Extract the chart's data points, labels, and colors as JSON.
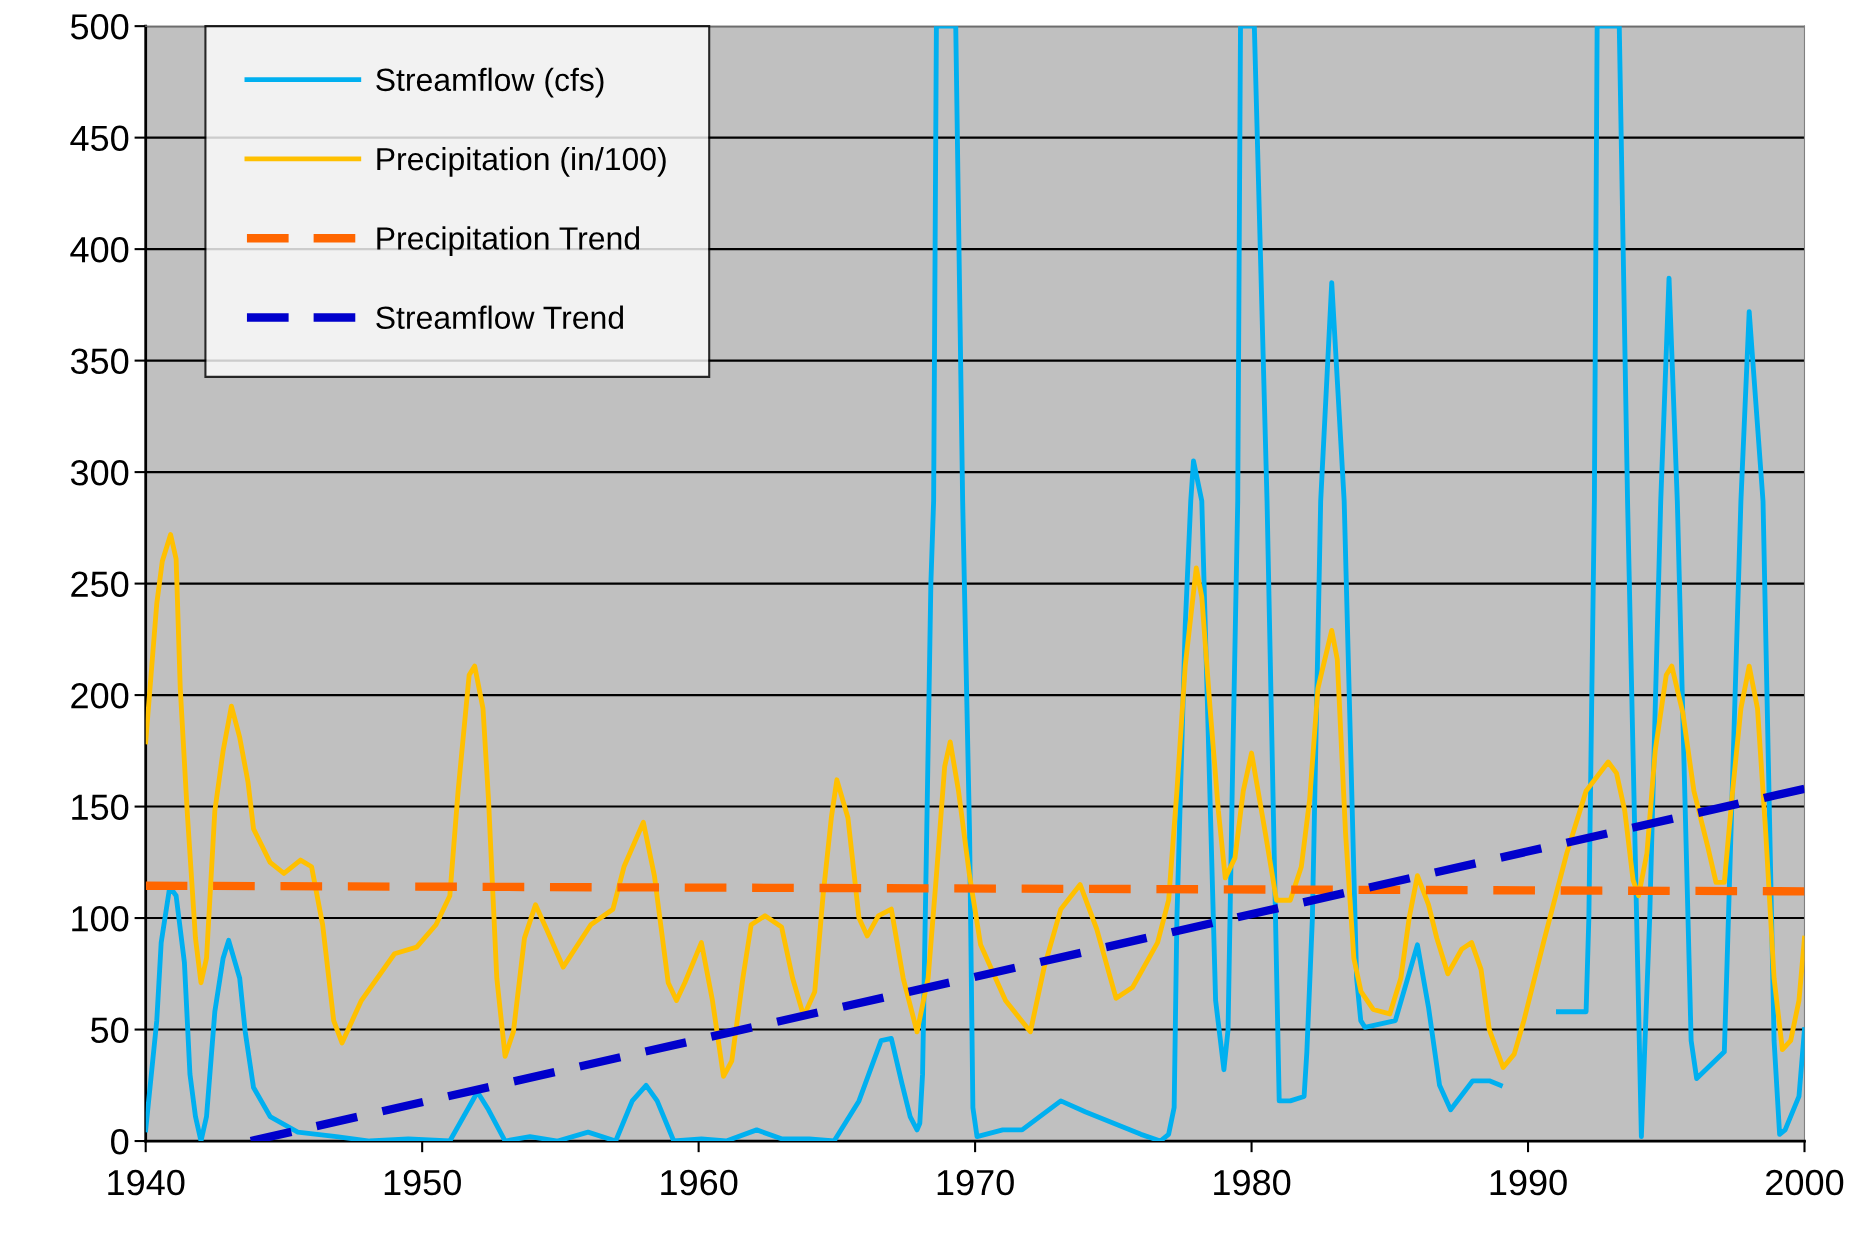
{
  "chart_data": {
    "type": "line",
    "xlim": [
      1940,
      2000
    ],
    "xticks": [
      1940,
      1950,
      1960,
      1970,
      1980,
      1990,
      2000
    ],
    "ylim": [
      0,
      500
    ],
    "yticks": [
      0,
      50,
      100,
      150,
      200,
      250,
      300,
      350,
      400,
      450,
      500
    ],
    "grid": "y",
    "legend": "top left",
    "series": [
      {
        "name": "Streamflow (cfs)",
        "color": "#00b0f0",
        "line_style": "solid",
        "x": [
          1940.0,
          1940.4,
          1940.56,
          1940.87,
          1941.1,
          1941.4,
          1941.6,
          1941.8,
          1942.0,
          1942.2,
          1942.5,
          1942.8,
          1943.0,
          1943.4,
          1943.6,
          1943.9,
          1944.5,
          1945.5,
          1946.9,
          1948.1,
          1949.5,
          1951.0,
          1952.0,
          1952.4,
          1953.0,
          1953.9,
          1954.9,
          1956.0,
          1957.0,
          1957.6,
          1958.1,
          1958.5,
          1959.1,
          1960.1,
          1961.0,
          1962.1,
          1963.0,
          1964.0,
          1964.9,
          1965.8,
          1966.6,
          1966.97,
          1967.35,
          1967.65,
          1967.9,
          1968.0,
          1968.1,
          1968.25,
          1968.4,
          1968.5,
          1968.6,
          1969.3,
          1969.55,
          1969.8,
          1969.92,
          1970.07,
          1971.0,
          1971.7,
          1973.1,
          1974.0,
          1976.0,
          1976.7,
          1977.0,
          1977.2,
          1977.3,
          1977.6,
          1977.8,
          1977.9,
          1978.2,
          1978.7,
          1979.0,
          1979.15,
          1979.3,
          1979.5,
          1979.6,
          1980.1,
          1980.56,
          1981.0,
          1981.4,
          1981.9,
          1982.0,
          1982.2,
          1982.5,
          1982.9,
          1983.35,
          1983.8,
          1983.95,
          1984.1,
          1985.2,
          1986.0,
          1986.4,
          1986.8,
          1987.2,
          1988.0,
          1988.6,
          1989.0,
          1990.0,
          1991.1,
          1992.1,
          1992.2,
          1992.4,
          1992.5,
          1993.3,
          1993.6,
          1994.1,
          1994.4,
          1994.8,
          1995.1,
          1995.4,
          1995.9,
          1996.1,
          1997.1,
          1997.2,
          1997.7,
          1998.0,
          1998.5,
          1998.9,
          1999.1,
          1999.3,
          1999.8,
          2000.0
        ],
        "values": [
          5,
          54,
          89,
          114,
          110,
          80,
          30,
          11,
          0,
          11,
          58,
          82,
          90,
          73,
          49,
          24,
          11,
          4,
          2,
          0,
          1,
          0,
          22,
          14,
          0,
          2,
          0,
          4,
          0,
          18,
          25,
          18,
          0,
          1,
          0,
          5,
          1,
          1,
          0,
          18,
          45,
          46,
          26,
          11,
          5,
          8,
          30,
          138,
          250,
          287,
          500,
          500,
          287,
          138,
          15,
          2,
          5,
          5,
          18,
          13,
          3,
          0,
          3,
          15,
          100,
          231,
          287,
          305,
          287,
          63,
          32,
          50,
          157,
          287,
          500,
          500,
          287,
          18,
          18,
          20,
          40,
          100,
          287,
          385,
          287,
          73,
          54,
          51,
          54,
          88,
          60,
          25,
          14,
          27,
          27,
          25,
          null,
          58,
          58,
          100,
          287,
          500,
          500,
          287,
          2,
          100,
          287,
          387,
          287,
          45,
          28,
          40,
          80,
          287,
          372,
          287,
          45,
          3,
          5,
          20,
          50
        ]
      },
      {
        "name": "Precipitation (in/100)",
        "color": "#ffc000",
        "line_style": "solid",
        "x": [
          1940.0,
          1940.4,
          1940.6,
          1940.9,
          1941.1,
          1941.25,
          1941.5,
          1941.8,
          1942.0,
          1942.2,
          1942.5,
          1942.8,
          1943.1,
          1943.4,
          1943.7,
          1943.9,
          1944.5,
          1945.0,
          1945.6,
          1946.0,
          1946.4,
          1946.8,
          1947.1,
          1947.8,
          1949.0,
          1949.8,
          1950.5,
          1951.0,
          1951.3,
          1951.7,
          1951.9,
          1952.2,
          1952.4,
          1952.7,
          1953.0,
          1953.3,
          1953.7,
          1954.1,
          1954.5,
          1955.1,
          1956.1,
          1956.9,
          1957.3,
          1958.0,
          1958.4,
          1958.9,
          1959.2,
          1959.5,
          1960.1,
          1960.5,
          1960.9,
          1961.2,
          1961.6,
          1961.9,
          1962.4,
          1963.0,
          1963.4,
          1963.8,
          1964.2,
          1964.5,
          1964.8,
          1965.0,
          1965.4,
          1965.8,
          1966.1,
          1966.5,
          1966.97,
          1967.4,
          1967.9,
          1968.3,
          1968.6,
          1968.9,
          1969.1,
          1969.4,
          1969.8,
          1970.2,
          1971.1,
          1972.0,
          1972.5,
          1973.1,
          1973.8,
          1974.4,
          1975.1,
          1975.7,
          1976.6,
          1977.0,
          1977.3,
          1977.6,
          1978.0,
          1978.2,
          1978.5,
          1978.8,
          1979.05,
          1979.4,
          1979.7,
          1980.0,
          1980.5,
          1980.9,
          1981.4,
          1981.8,
          1982.1,
          1982.4,
          1982.9,
          1983.1,
          1983.4,
          1983.7,
          1983.96,
          1984.4,
          1985.0,
          1985.4,
          1985.7,
          1986.0,
          1986.4,
          1986.7,
          1987.1,
          1987.6,
          1987.96,
          1988.3,
          1988.6,
          1989.1,
          1989.5,
          1989.85,
          1990.6,
          1991.4,
          1992.1,
          1992.9,
          1993.2,
          1993.5,
          1993.8,
          1994.0,
          1994.3,
          1994.6,
          1995.0,
          1995.2,
          1995.6,
          1996.0,
          1996.5,
          1996.8,
          1997.1,
          1997.4,
          1997.7,
          1998.0,
          1998.3,
          1998.6,
          1998.9,
          1999.2,
          1999.5,
          1999.8,
          2000.0
        ],
        "values": [
          179,
          241,
          260,
          272,
          261,
          203,
          148,
          91,
          71,
          82,
          148,
          175,
          195,
          181,
          161,
          140,
          125,
          120,
          126,
          123,
          97,
          54,
          44,
          63,
          84,
          87,
          97,
          110,
          157,
          209,
          213,
          194,
          153,
          73,
          38,
          49,
          91,
          106,
          95,
          78,
          97,
          104,
          123,
          143,
          119,
          71,
          63,
          71,
          89,
          63,
          29,
          36,
          73,
          97,
          101,
          96,
          73,
          56,
          67,
          110,
          145,
          162,
          145,
          100,
          92,
          101,
          104,
          73,
          49,
          73,
          119,
          168,
          179,
          157,
          119,
          88,
          63,
          49,
          78,
          104,
          115,
          95,
          64,
          69,
          89,
          108,
          157,
          213,
          257,
          244,
          194,
          148,
          118,
          127,
          157,
          174,
          138,
          108,
          108,
          123,
          153,
          203,
          229,
          216,
          138,
          82,
          67,
          59,
          57,
          73,
          100,
          119,
          106,
          91,
          75,
          86,
          89,
          77,
          50,
          33,
          39,
          54,
          91,
          129,
          157,
          170,
          165,
          148,
          117,
          110,
          129,
          175,
          209,
          213,
          192,
          157,
          132,
          116,
          116,
          157,
          194,
          213,
          194,
          138,
          73,
          41,
          45,
          63,
          91
        ]
      },
      {
        "name": "Precipitation Trend",
        "color": "#ff6600",
        "line_style": "dashed",
        "x": [
          1940,
          2000
        ],
        "values": [
          114.5,
          112
        ]
      },
      {
        "name": "Streamflow Trend",
        "color": "#0000cc",
        "line_style": "dashed",
        "x": [
          1943.8,
          2000
        ],
        "values": [
          0,
          158
        ]
      }
    ]
  }
}
